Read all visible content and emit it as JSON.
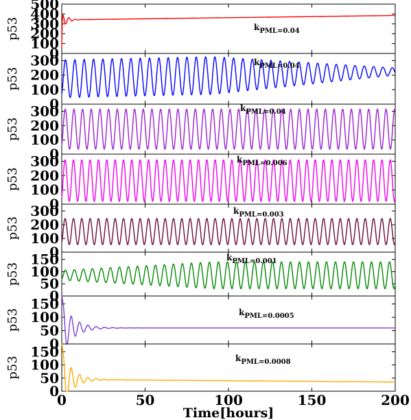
{
  "chart_data": {
    "type": "line",
    "xlabel": "Time[hours]",
    "xlim": [
      0,
      200
    ],
    "xticks": [
      0,
      50,
      100,
      150,
      200
    ],
    "panels": [
      {
        "ylabel": "p53",
        "ylim": [
          0,
          500
        ],
        "yticks": [
          0,
          100,
          200,
          300,
          400,
          500
        ],
        "color": "#ff0000",
        "annotation": {
          "main": "k",
          "sub": "PML",
          "value": "=0.04"
        },
        "series": {
          "kind": "damped-to-trend",
          "start": 0,
          "peak": 430,
          "trough": 255,
          "settle": 340,
          "end": 385,
          "period": 3.8,
          "decay": 3.0
        }
      },
      {
        "ylabel": "p53",
        "ylim": [
          0,
          350
        ],
        "yticks": [
          0,
          100,
          200,
          300
        ],
        "color": "#0000ff",
        "annotation": {
          "main": "k",
          "sub": "PML",
          "value": "=0.04"
        },
        "series": {
          "kind": "sustained",
          "center": 175,
          "amplitude": 130,
          "center_end": 225,
          "amplitude_end": 25,
          "period": 5.6
        }
      },
      {
        "ylabel": "p53",
        "ylim": [
          0,
          350
        ],
        "yticks": [
          0,
          100,
          200,
          300
        ],
        "color": "#9a20d0",
        "annotation": {
          "main": "k",
          "sub": "PML",
          "value": "=0.04"
        },
        "series": {
          "kind": "sustained",
          "center": 175,
          "amplitude": 140,
          "center_end": 175,
          "amplitude_end": 140,
          "period": 5.2
        }
      },
      {
        "ylabel": "p53",
        "ylim": [
          0,
          350
        ],
        "yticks": [
          0,
          100,
          200,
          300
        ],
        "color": "#ee00ee",
        "annotation": {
          "main": "k",
          "sub": "PML",
          "value": "=0.006"
        },
        "series": {
          "kind": "sustained",
          "center": 165,
          "amplitude": 145,
          "center_end": 165,
          "amplitude_end": 145,
          "period": 5.0
        }
      },
      {
        "ylabel": "p53",
        "ylim": [
          0,
          350
        ],
        "yticks": [
          0,
          100,
          200,
          300
        ],
        "color": "#6b0a3a",
        "annotation": {
          "main": "k",
          "sub": "PML",
          "value": "=0.003"
        },
        "series": {
          "kind": "sustained",
          "center": 150,
          "amplitude": 95,
          "center_end": 150,
          "amplitude_end": 95,
          "period": 5.0
        }
      },
      {
        "ylabel": "p53",
        "ylim": [
          0,
          180
        ],
        "yticks": [
          0,
          50,
          100,
          150
        ],
        "color": "#008800",
        "annotation": {
          "main": "k",
          "sub": "PML",
          "value": "=0.001"
        },
        "series": {
          "kind": "growing",
          "center": 85,
          "amplitude": 20,
          "center_end": 85,
          "amplitude_end": 55,
          "period": 5.4
        }
      },
      {
        "ylabel": "p53",
        "ylim": [
          0,
          180
        ],
        "yticks": [
          0,
          50,
          100,
          150
        ],
        "color": "#7b3fd6",
        "annotation": {
          "main": "k",
          "sub": "PML",
          "value": "=0.0005"
        },
        "series": {
          "kind": "damped-to-trend",
          "start": 150,
          "peak": 160,
          "trough": 20,
          "settle": 60,
          "end": 60,
          "period": 5.0,
          "decay": 7.0
        }
      },
      {
        "ylabel": "p53",
        "ylim": [
          0,
          180
        ],
        "yticks": [
          0,
          50,
          100,
          150
        ],
        "color": "#ffaa00",
        "annotation": {
          "main": "k",
          "sub": "PML",
          "value": "=0.0008"
        },
        "series": {
          "kind": "damped-to-trend",
          "start": 150,
          "peak": 160,
          "trough": 10,
          "settle": 45,
          "end": 35,
          "period": 5.0,
          "decay": 6.0
        }
      }
    ]
  }
}
